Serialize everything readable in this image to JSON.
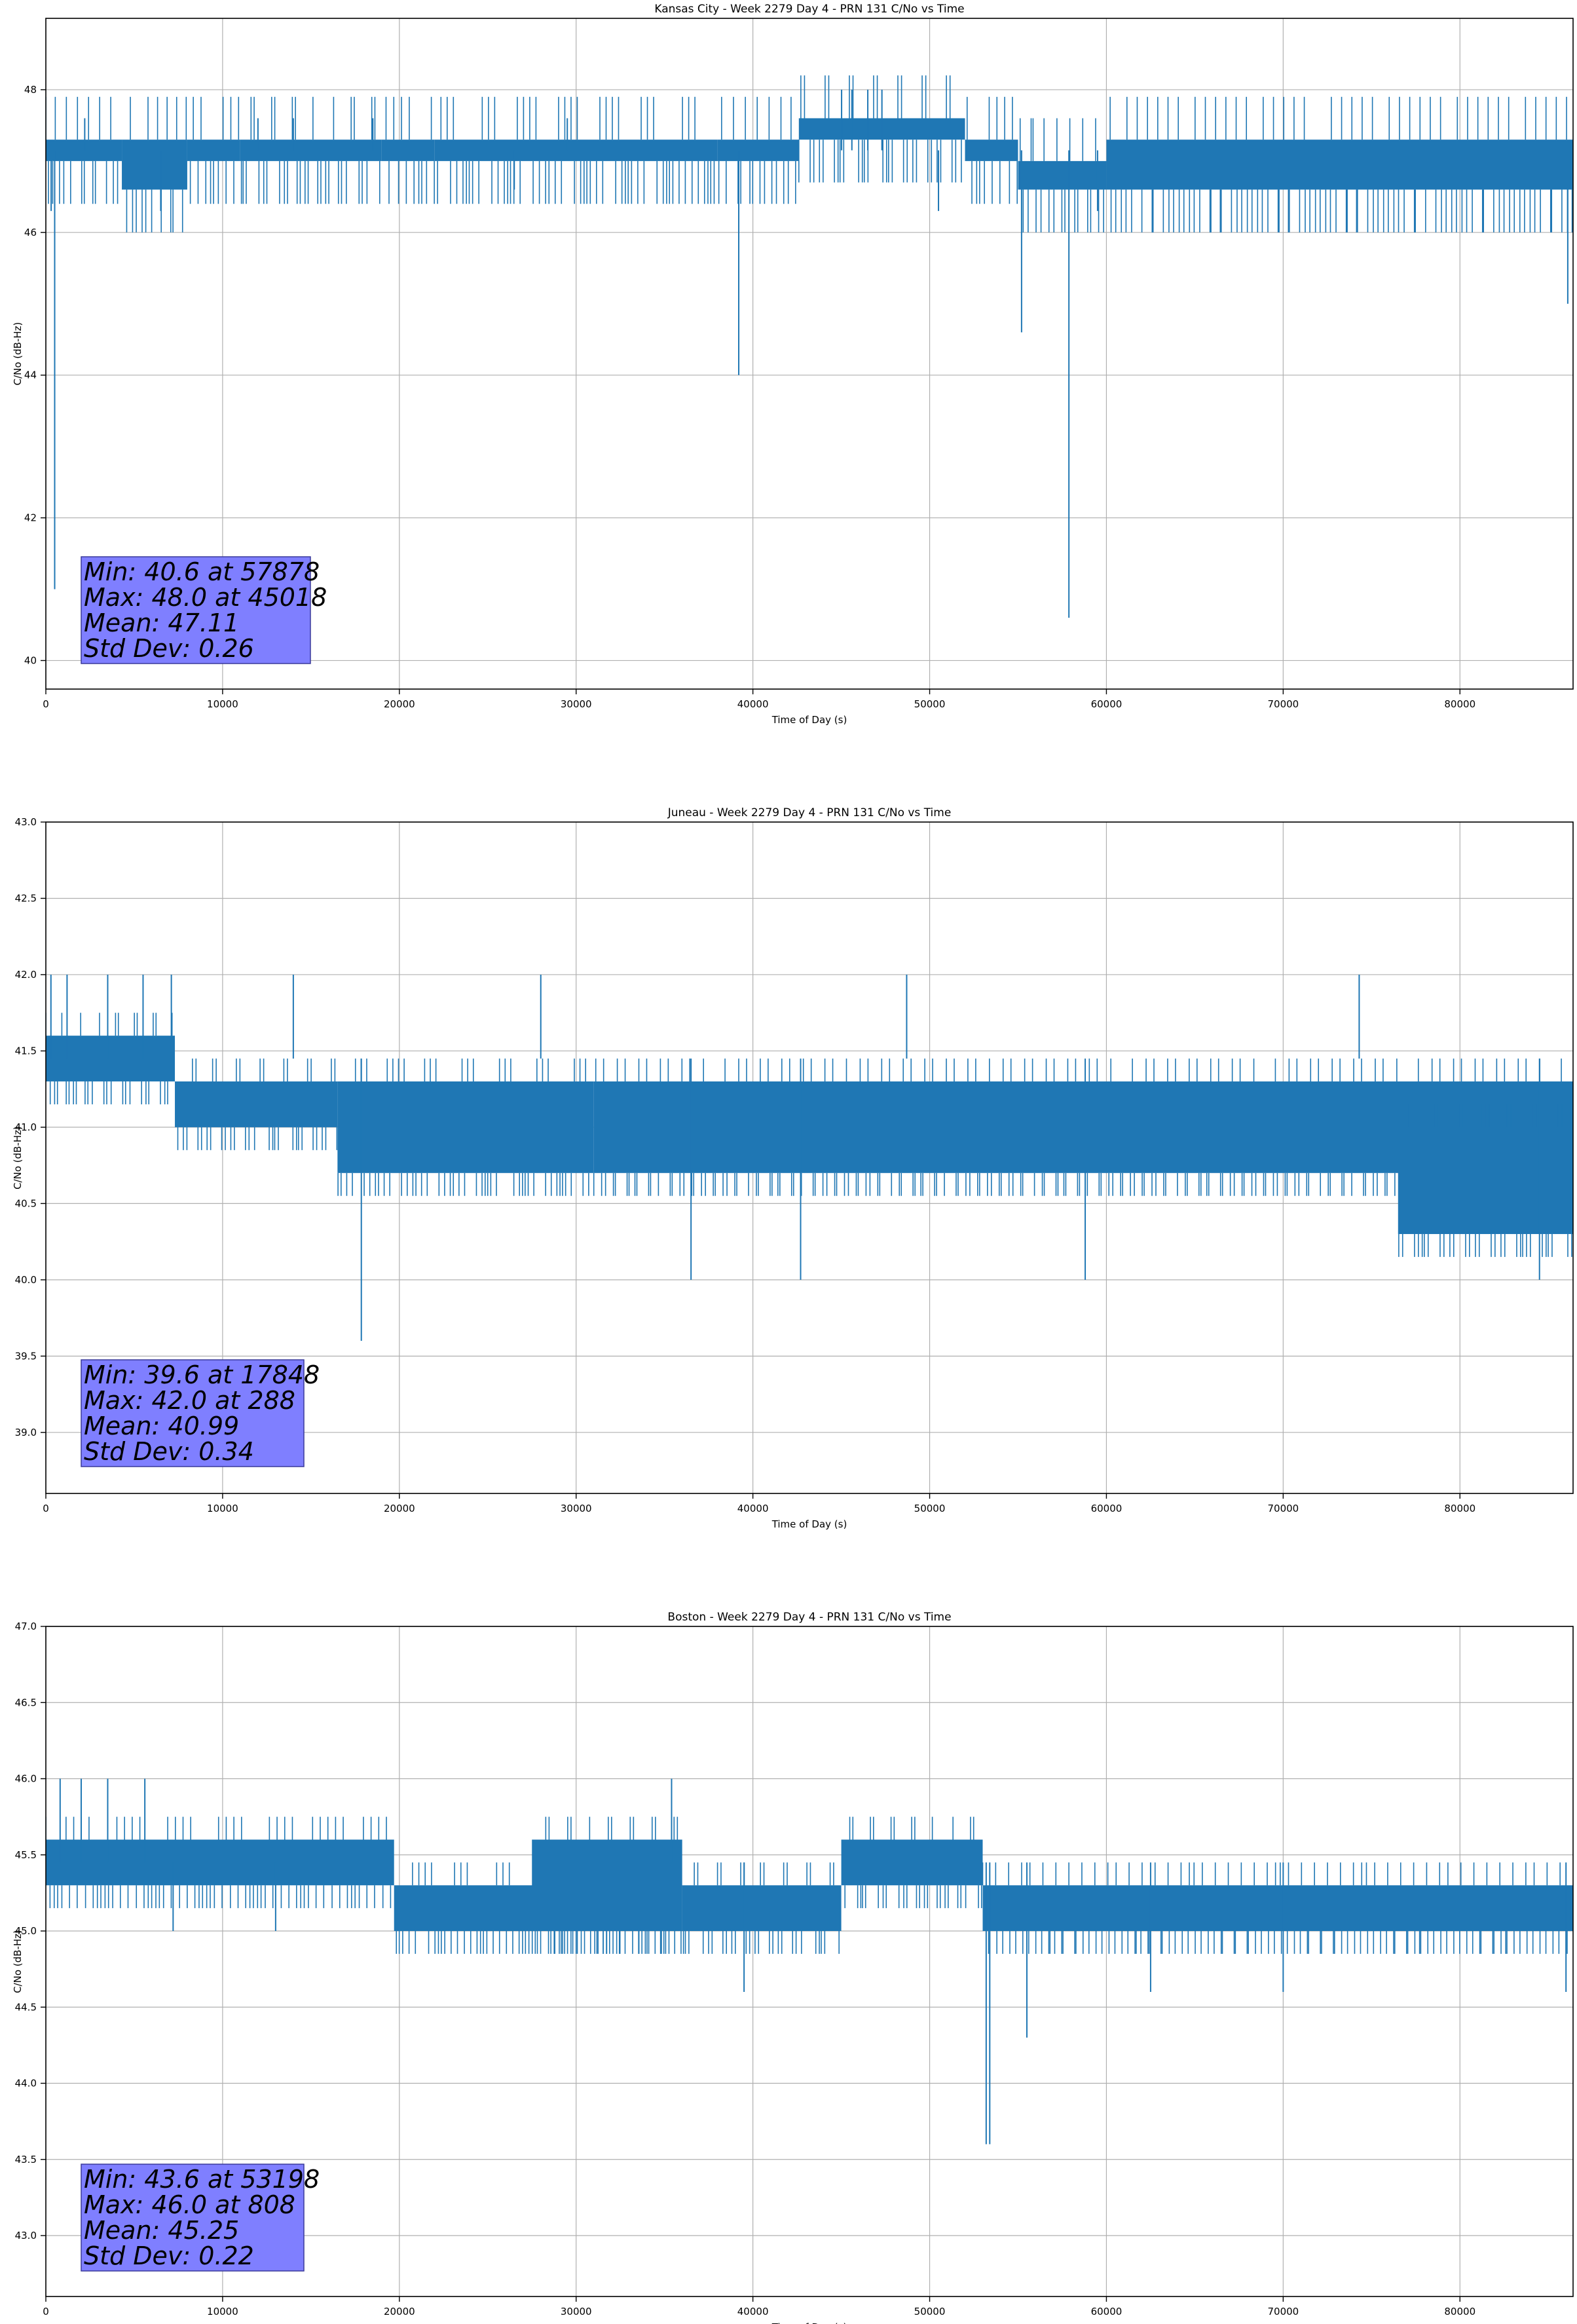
{
  "chart_data": [
    {
      "type": "line",
      "title": "Kansas City - Week 2279 Day 4 - PRN 131 C/No vs Time",
      "xlabel": "Time of Day (s)",
      "ylabel": "C/No (dB-Hz)",
      "xlim": [
        0,
        86400
      ],
      "ylim": [
        39.6,
        49.0
      ],
      "xticks": [
        0,
        10000,
        20000,
        30000,
        40000,
        50000,
        60000,
        70000,
        80000
      ],
      "yticks": [
        40,
        42,
        44,
        46,
        48
      ],
      "grid": true,
      "color": "#1f77b4",
      "segments": [
        {
          "x": [
            0,
            4300
          ],
          "min": 47.0,
          "max": 47.3
        },
        {
          "x": [
            4300,
            8000
          ],
          "min": 46.6,
          "max": 47.3
        },
        {
          "x": [
            8000,
            11000
          ],
          "min": 47.0,
          "max": 47.3
        },
        {
          "x": [
            11000,
            19000
          ],
          "min": 47.0,
          "max": 47.3
        },
        {
          "x": [
            19000,
            22000
          ],
          "min": 47.0,
          "max": 47.3
        },
        {
          "x": [
            22000,
            38000
          ],
          "min": 47.0,
          "max": 47.3
        },
        {
          "x": [
            38000,
            42600
          ],
          "min": 47.0,
          "max": 47.3
        },
        {
          "x": [
            42600,
            52000
          ],
          "min": 47.3,
          "max": 47.6
        },
        {
          "x": [
            52000,
            55000
          ],
          "min": 47.0,
          "max": 47.3
        },
        {
          "x": [
            55000,
            60000
          ],
          "min": 46.6,
          "max": 47.0
        },
        {
          "x": [
            60000,
            86400
          ],
          "min": 46.6,
          "max": 47.3
        }
      ],
      "spikes": [
        {
          "x": 300,
          "y": 46.3
        },
        {
          "x": 500,
          "y": 41.0
        },
        {
          "x": 2200,
          "y": 47.6
        },
        {
          "x": 6500,
          "y": 46.3
        },
        {
          "x": 12000,
          "y": 47.6
        },
        {
          "x": 14000,
          "y": 47.6
        },
        {
          "x": 18500,
          "y": 47.6
        },
        {
          "x": 26500,
          "y": 46.6
        },
        {
          "x": 29500,
          "y": 47.6
        },
        {
          "x": 39200,
          "y": 44.0
        },
        {
          "x": 45018,
          "y": 48.0
        },
        {
          "x": 45600,
          "y": 48.0
        },
        {
          "x": 46500,
          "y": 48.0
        },
        {
          "x": 47300,
          "y": 48.0
        },
        {
          "x": 50500,
          "y": 46.3
        },
        {
          "x": 55200,
          "y": 44.6
        },
        {
          "x": 57878,
          "y": 40.6
        },
        {
          "x": 59500,
          "y": 46.3
        },
        {
          "x": 86100,
          "y": 45.0
        }
      ],
      "stats": [
        "Min: 40.6 at 57878",
        "Max: 48.0 at 45018",
        "Mean: 47.11",
        "Std Dev: 0.26"
      ]
    },
    {
      "type": "line",
      "title": "Juneau - Week 2279 Day 4 - PRN 131 C/No vs Time",
      "xlabel": "Time of Day (s)",
      "ylabel": "C/No (dB-Hz)",
      "xlim": [
        0,
        86400
      ],
      "ylim": [
        38.6,
        43.0
      ],
      "xticks": [
        0,
        10000,
        20000,
        30000,
        40000,
        50000,
        60000,
        70000,
        80000
      ],
      "yticks": [
        39.0,
        39.5,
        40.0,
        40.5,
        41.0,
        41.5,
        42.0,
        42.5,
        43.0
      ],
      "grid": true,
      "color": "#1f77b4",
      "segments": [
        {
          "x": [
            0,
            7300
          ],
          "min": 41.3,
          "max": 41.6
        },
        {
          "x": [
            7300,
            16500
          ],
          "min": 41.0,
          "max": 41.3
        },
        {
          "x": [
            16500,
            31000
          ],
          "min": 40.7,
          "max": 41.3
        },
        {
          "x": [
            31000,
            86400
          ],
          "min": 40.7,
          "max": 41.3
        },
        {
          "x": [
            76500,
            86400
          ],
          "min": 40.3,
          "max": 41.0
        }
      ],
      "spikes": [
        {
          "x": 288,
          "y": 42.0
        },
        {
          "x": 1200,
          "y": 42.0
        },
        {
          "x": 3500,
          "y": 42.0
        },
        {
          "x": 5500,
          "y": 42.0
        },
        {
          "x": 7100,
          "y": 42.0
        },
        {
          "x": 14000,
          "y": 42.0
        },
        {
          "x": 17848,
          "y": 39.6
        },
        {
          "x": 28000,
          "y": 42.0
        },
        {
          "x": 48700,
          "y": 42.0
        },
        {
          "x": 74300,
          "y": 42.0
        },
        {
          "x": 36500,
          "y": 40.0
        },
        {
          "x": 42700,
          "y": 40.0
        },
        {
          "x": 58800,
          "y": 40.0
        },
        {
          "x": 84500,
          "y": 40.0
        }
      ],
      "stats": [
        "Min: 39.6 at 17848",
        "Max: 42.0 at 288",
        "Mean: 40.99",
        "Std Dev: 0.34"
      ]
    },
    {
      "type": "line",
      "title": "Boston - Week 2279 Day 4 - PRN 131 C/No vs Time",
      "xlabel": "Time of Day (s)",
      "ylabel": "C/No (dB-Hz)",
      "xlim": [
        0,
        86400
      ],
      "ylim": [
        42.6,
        47.0
      ],
      "xticks": [
        0,
        10000,
        20000,
        30000,
        40000,
        50000,
        60000,
        70000,
        80000
      ],
      "yticks": [
        43.0,
        43.5,
        44.0,
        44.5,
        45.0,
        45.5,
        46.0,
        46.5,
        47.0
      ],
      "grid": true,
      "color": "#1f77b4",
      "segments": [
        {
          "x": [
            0,
            19700
          ],
          "min": 45.3,
          "max": 45.6
        },
        {
          "x": [
            19700,
            36000
          ],
          "min": 45.0,
          "max": 45.3
        },
        {
          "x": [
            27500,
            36000
          ],
          "min": 45.0,
          "max": 45.6
        },
        {
          "x": [
            36000,
            45000
          ],
          "min": 45.0,
          "max": 45.3
        },
        {
          "x": [
            45000,
            53000
          ],
          "min": 45.3,
          "max": 45.6
        },
        {
          "x": [
            53000,
            86400
          ],
          "min": 45.0,
          "max": 45.3
        }
      ],
      "spikes": [
        {
          "x": 808,
          "y": 46.0
        },
        {
          "x": 2000,
          "y": 46.0
        },
        {
          "x": 3500,
          "y": 46.0
        },
        {
          "x": 5600,
          "y": 46.0
        },
        {
          "x": 35400,
          "y": 46.0
        },
        {
          "x": 39500,
          "y": 44.6
        },
        {
          "x": 53198,
          "y": 43.6
        },
        {
          "x": 53400,
          "y": 43.6
        },
        {
          "x": 55500,
          "y": 44.3
        },
        {
          "x": 62500,
          "y": 44.6
        },
        {
          "x": 70000,
          "y": 44.6
        },
        {
          "x": 86000,
          "y": 44.6
        },
        {
          "x": 7200,
          "y": 45.0
        },
        {
          "x": 13000,
          "y": 45.0
        }
      ],
      "stats": [
        "Min: 43.6 at 53198",
        "Max: 46.0 at 808",
        "Mean: 45.25",
        "Std Dev: 0.22"
      ]
    }
  ]
}
